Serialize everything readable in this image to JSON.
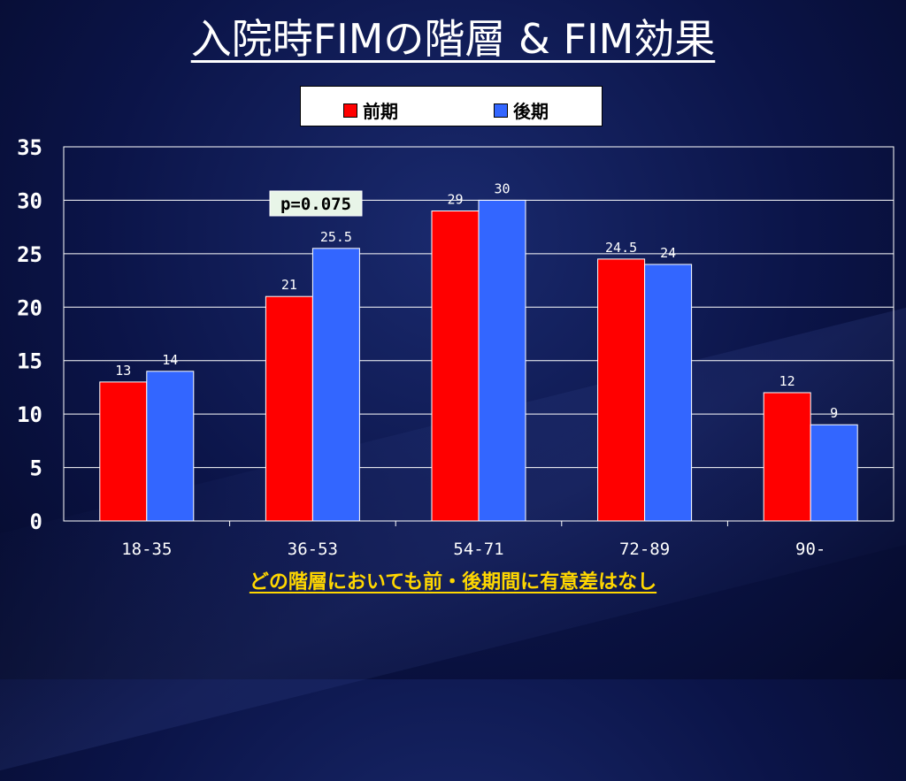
{
  "title": "入院時FIMの階層 & FIM効果",
  "footnote": "どの階層においても前・後期間に有意差はなし",
  "annotation": "p=0.075",
  "colors": {
    "前期": "#ff0000",
    "後期": "#3366ff",
    "annotation_bg": "#e8f5e8"
  },
  "legend": [
    {
      "name": "前期",
      "color": "#ff0000"
    },
    {
      "name": "後期",
      "color": "#3366ff"
    }
  ],
  "chart_data": {
    "type": "bar",
    "title": "入院時FIMの階層 & FIM効果",
    "categories": [
      "18-35",
      "36-53",
      "54-71",
      "72-89",
      "90-"
    ],
    "series": [
      {
        "name": "前期",
        "values": [
          13,
          21,
          29,
          24.5,
          12
        ],
        "labels": [
          "13",
          "21",
          "29",
          "24.5",
          "12"
        ]
      },
      {
        "name": "後期",
        "values": [
          14,
          25.5,
          30,
          24,
          9
        ],
        "labels": [
          "14",
          "25.5",
          "30",
          "24",
          "9"
        ]
      }
    ],
    "ylim": [
      0,
      35
    ],
    "yticks": [
      "0",
      "5",
      "10",
      "15",
      "20",
      "25",
      "30",
      "35"
    ],
    "grid": true,
    "legend_position": "top"
  }
}
